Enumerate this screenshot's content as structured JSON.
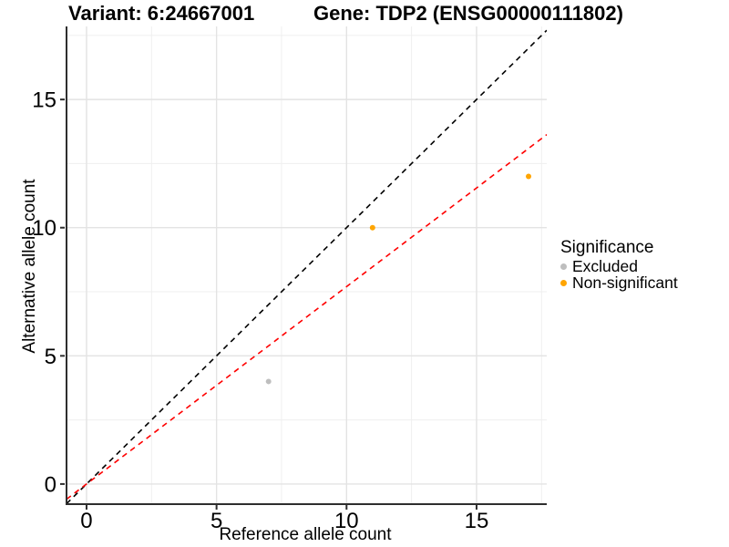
{
  "chart_data": {
    "type": "scatter",
    "titles": {
      "left": "Variant: 6:24667001",
      "right": "Gene: TDP2 (ENSG00000111802)"
    },
    "xlabel": "Reference allele count",
    "ylabel": "Alternative allele count",
    "xlim": [
      -0.77,
      17.7
    ],
    "ylim": [
      -0.75,
      17.85
    ],
    "xticks": [
      0,
      5,
      10,
      15
    ],
    "yticks": [
      0,
      5,
      10,
      15
    ],
    "x_minor_ticks": [
      2.5,
      7.5,
      12.5,
      17.5
    ],
    "y_minor_ticks": [
      2.5,
      7.5,
      12.5,
      17.5
    ],
    "grid": true,
    "legend_position": "right",
    "points": [
      {
        "x": 7,
        "y": 4,
        "significance": "Excluded",
        "color": "#BEBEBE"
      },
      {
        "x": 11,
        "y": 10,
        "significance": "Non-significant",
        "color": "#FFA500"
      },
      {
        "x": 17,
        "y": 12,
        "significance": "Non-significant",
        "color": "#FFA500"
      }
    ],
    "lines": [
      {
        "name": "identity-line",
        "slope": 1,
        "intercept": 0,
        "color": "#000000",
        "dash": true
      },
      {
        "name": "fit-line",
        "slope": 0.77,
        "intercept": 0,
        "color": "#FF0000",
        "dash": true
      }
    ],
    "legend": {
      "title": "Significance",
      "entries": [
        {
          "label": "Excluded",
          "color": "#BEBEBE"
        },
        {
          "label": "Non-significant",
          "color": "#FFA500"
        }
      ]
    },
    "colors": {
      "grid_major": "#e3e3e3",
      "grid_minor": "#efefef",
      "axis": "#2e2e2e",
      "tick_text": "#000000"
    }
  }
}
